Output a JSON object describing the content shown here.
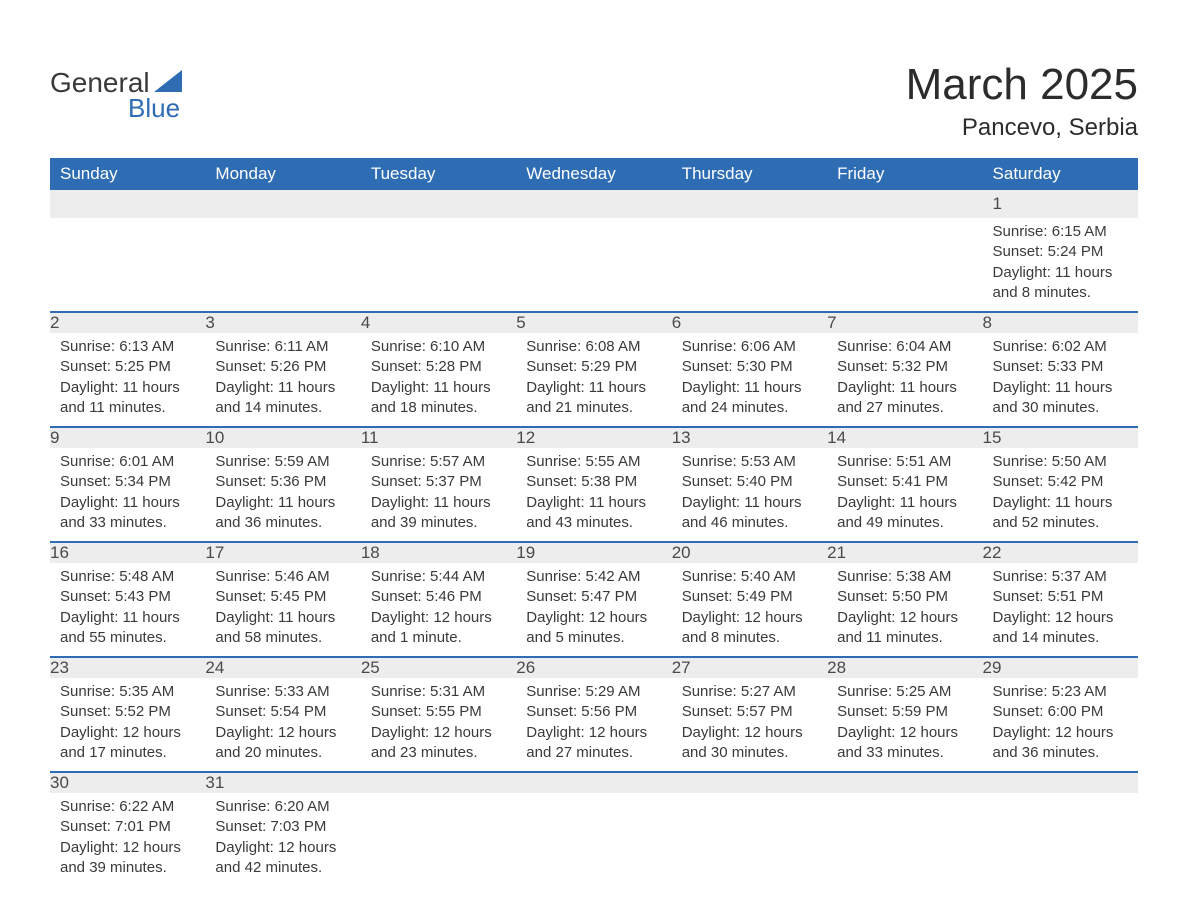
{
  "logo": {
    "word1": "General",
    "word2": "Blue",
    "tri_color": "#2e6db3"
  },
  "header": {
    "title": "March 2025",
    "location": "Pancevo, Serbia"
  },
  "calendar": {
    "header_bg": "#2e6db3",
    "row_divider": "#2e6db3",
    "daynum_bg": "#ededed",
    "text_color": "#3a3a3a",
    "days_of_week": [
      "Sunday",
      "Monday",
      "Tuesday",
      "Wednesday",
      "Thursday",
      "Friday",
      "Saturday"
    ],
    "weeks": [
      [
        null,
        null,
        null,
        null,
        null,
        null,
        {
          "n": "1",
          "sr": "Sunrise: 6:15 AM",
          "ss": "Sunset: 5:24 PM",
          "dl": "Daylight: 11 hours and 8 minutes."
        }
      ],
      [
        {
          "n": "2",
          "sr": "Sunrise: 6:13 AM",
          "ss": "Sunset: 5:25 PM",
          "dl": "Daylight: 11 hours and 11 minutes."
        },
        {
          "n": "3",
          "sr": "Sunrise: 6:11 AM",
          "ss": "Sunset: 5:26 PM",
          "dl": "Daylight: 11 hours and 14 minutes."
        },
        {
          "n": "4",
          "sr": "Sunrise: 6:10 AM",
          "ss": "Sunset: 5:28 PM",
          "dl": "Daylight: 11 hours and 18 minutes."
        },
        {
          "n": "5",
          "sr": "Sunrise: 6:08 AM",
          "ss": "Sunset: 5:29 PM",
          "dl": "Daylight: 11 hours and 21 minutes."
        },
        {
          "n": "6",
          "sr": "Sunrise: 6:06 AM",
          "ss": "Sunset: 5:30 PM",
          "dl": "Daylight: 11 hours and 24 minutes."
        },
        {
          "n": "7",
          "sr": "Sunrise: 6:04 AM",
          "ss": "Sunset: 5:32 PM",
          "dl": "Daylight: 11 hours and 27 minutes."
        },
        {
          "n": "8",
          "sr": "Sunrise: 6:02 AM",
          "ss": "Sunset: 5:33 PM",
          "dl": "Daylight: 11 hours and 30 minutes."
        }
      ],
      [
        {
          "n": "9",
          "sr": "Sunrise: 6:01 AM",
          "ss": "Sunset: 5:34 PM",
          "dl": "Daylight: 11 hours and 33 minutes."
        },
        {
          "n": "10",
          "sr": "Sunrise: 5:59 AM",
          "ss": "Sunset: 5:36 PM",
          "dl": "Daylight: 11 hours and 36 minutes."
        },
        {
          "n": "11",
          "sr": "Sunrise: 5:57 AM",
          "ss": "Sunset: 5:37 PM",
          "dl": "Daylight: 11 hours and 39 minutes."
        },
        {
          "n": "12",
          "sr": "Sunrise: 5:55 AM",
          "ss": "Sunset: 5:38 PM",
          "dl": "Daylight: 11 hours and 43 minutes."
        },
        {
          "n": "13",
          "sr": "Sunrise: 5:53 AM",
          "ss": "Sunset: 5:40 PM",
          "dl": "Daylight: 11 hours and 46 minutes."
        },
        {
          "n": "14",
          "sr": "Sunrise: 5:51 AM",
          "ss": "Sunset: 5:41 PM",
          "dl": "Daylight: 11 hours and 49 minutes."
        },
        {
          "n": "15",
          "sr": "Sunrise: 5:50 AM",
          "ss": "Sunset: 5:42 PM",
          "dl": "Daylight: 11 hours and 52 minutes."
        }
      ],
      [
        {
          "n": "16",
          "sr": "Sunrise: 5:48 AM",
          "ss": "Sunset: 5:43 PM",
          "dl": "Daylight: 11 hours and 55 minutes."
        },
        {
          "n": "17",
          "sr": "Sunrise: 5:46 AM",
          "ss": "Sunset: 5:45 PM",
          "dl": "Daylight: 11 hours and 58 minutes."
        },
        {
          "n": "18",
          "sr": "Sunrise: 5:44 AM",
          "ss": "Sunset: 5:46 PM",
          "dl": "Daylight: 12 hours and 1 minute."
        },
        {
          "n": "19",
          "sr": "Sunrise: 5:42 AM",
          "ss": "Sunset: 5:47 PM",
          "dl": "Daylight: 12 hours and 5 minutes."
        },
        {
          "n": "20",
          "sr": "Sunrise: 5:40 AM",
          "ss": "Sunset: 5:49 PM",
          "dl": "Daylight: 12 hours and 8 minutes."
        },
        {
          "n": "21",
          "sr": "Sunrise: 5:38 AM",
          "ss": "Sunset: 5:50 PM",
          "dl": "Daylight: 12 hours and 11 minutes."
        },
        {
          "n": "22",
          "sr": "Sunrise: 5:37 AM",
          "ss": "Sunset: 5:51 PM",
          "dl": "Daylight: 12 hours and 14 minutes."
        }
      ],
      [
        {
          "n": "23",
          "sr": "Sunrise: 5:35 AM",
          "ss": "Sunset: 5:52 PM",
          "dl": "Daylight: 12 hours and 17 minutes."
        },
        {
          "n": "24",
          "sr": "Sunrise: 5:33 AM",
          "ss": "Sunset: 5:54 PM",
          "dl": "Daylight: 12 hours and 20 minutes."
        },
        {
          "n": "25",
          "sr": "Sunrise: 5:31 AM",
          "ss": "Sunset: 5:55 PM",
          "dl": "Daylight: 12 hours and 23 minutes."
        },
        {
          "n": "26",
          "sr": "Sunrise: 5:29 AM",
          "ss": "Sunset: 5:56 PM",
          "dl": "Daylight: 12 hours and 27 minutes."
        },
        {
          "n": "27",
          "sr": "Sunrise: 5:27 AM",
          "ss": "Sunset: 5:57 PM",
          "dl": "Daylight: 12 hours and 30 minutes."
        },
        {
          "n": "28",
          "sr": "Sunrise: 5:25 AM",
          "ss": "Sunset: 5:59 PM",
          "dl": "Daylight: 12 hours and 33 minutes."
        },
        {
          "n": "29",
          "sr": "Sunrise: 5:23 AM",
          "ss": "Sunset: 6:00 PM",
          "dl": "Daylight: 12 hours and 36 minutes."
        }
      ],
      [
        {
          "n": "30",
          "sr": "Sunrise: 6:22 AM",
          "ss": "Sunset: 7:01 PM",
          "dl": "Daylight: 12 hours and 39 minutes."
        },
        {
          "n": "31",
          "sr": "Sunrise: 6:20 AM",
          "ss": "Sunset: 7:03 PM",
          "dl": "Daylight: 12 hours and 42 minutes."
        },
        null,
        null,
        null,
        null,
        null
      ]
    ]
  }
}
